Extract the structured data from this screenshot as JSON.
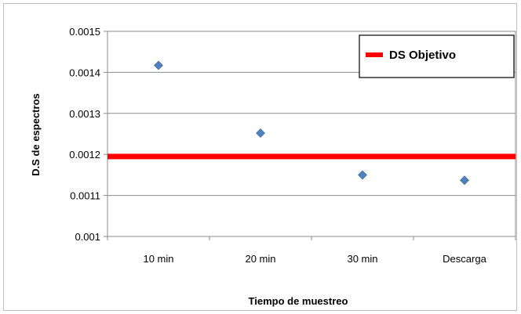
{
  "chart_data": {
    "type": "scatter",
    "title": "",
    "xlabel": "Tiempo de muestreo",
    "ylabel": "D.S de espectros",
    "categories": [
      "10 min",
      "20 min",
      "30 min",
      "Descarga"
    ],
    "series": [
      {
        "values": [
          0.001417,
          0.001252,
          0.00115,
          0.001137
        ],
        "color": "#4f81bd",
        "marker": "diamond"
      }
    ],
    "reference_line": {
      "name": "DS  Objetivo",
      "value": 0.001195,
      "color": "#ff0000"
    },
    "ylim": [
      0.001,
      0.0015
    ],
    "yticks": [
      "0.001",
      "0.0011",
      "0.0012",
      "0.0013",
      "0.0014",
      "0.0015"
    ],
    "grid": true,
    "legend_position": "top-right"
  }
}
